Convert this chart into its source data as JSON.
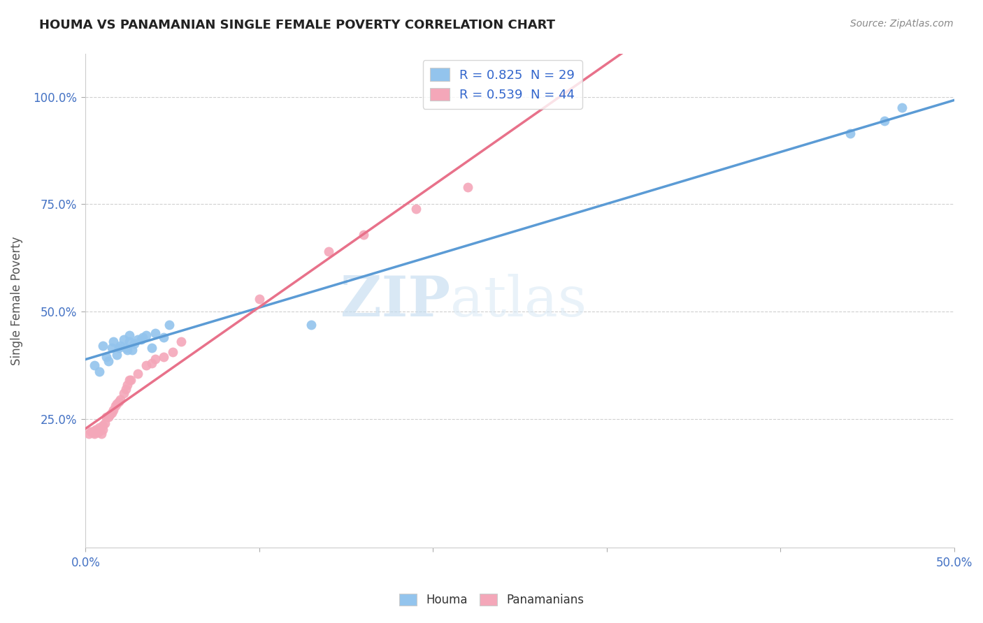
{
  "title": "HOUMA VS PANAMANIAN SINGLE FEMALE POVERTY CORRELATION CHART",
  "source": "Source: ZipAtlas.com",
  "ylabel": "Single Female Poverty",
  "xlim": [
    0.0,
    0.5
  ],
  "ylim": [
    -0.05,
    1.1
  ],
  "xtick_labels": [
    "0.0%",
    "",
    "",
    "",
    "",
    "50.0%"
  ],
  "xtick_vals": [
    0.0,
    0.1,
    0.2,
    0.3,
    0.4,
    0.5
  ],
  "ytick_labels": [
    "25.0%",
    "50.0%",
    "75.0%",
    "100.0%"
  ],
  "ytick_vals": [
    0.25,
    0.5,
    0.75,
    1.0
  ],
  "houma_R": 0.825,
  "houma_N": 29,
  "panamanian_R": 0.539,
  "panamanian_N": 44,
  "houma_color": "#93c4ed",
  "panamanian_color": "#f4a7b9",
  "houma_line_color": "#5b9bd5",
  "panamanian_line_color": "#e8718a",
  "legend_text_color": "#3366cc",
  "watermark_zip": "ZIP",
  "watermark_atlas": "atlas",
  "background_color": "#ffffff",
  "grid_color": "#d0d0d0",
  "houma_x": [
    0.005,
    0.008,
    0.01,
    0.012,
    0.013,
    0.015,
    0.016,
    0.018,
    0.019,
    0.02,
    0.022,
    0.023,
    0.024,
    0.025,
    0.025,
    0.027,
    0.028,
    0.03,
    0.032,
    0.033,
    0.035,
    0.038,
    0.04,
    0.045,
    0.048,
    0.13,
    0.44,
    0.46,
    0.47
  ],
  "houma_y": [
    0.375,
    0.36,
    0.42,
    0.395,
    0.385,
    0.415,
    0.43,
    0.4,
    0.415,
    0.42,
    0.435,
    0.415,
    0.41,
    0.43,
    0.445,
    0.41,
    0.425,
    0.435,
    0.435,
    0.44,
    0.445,
    0.415,
    0.45,
    0.44,
    0.47,
    0.47,
    0.915,
    0.945,
    0.975
  ],
  "panamanian_x": [
    0.002,
    0.003,
    0.004,
    0.005,
    0.005,
    0.005,
    0.006,
    0.006,
    0.007,
    0.007,
    0.007,
    0.008,
    0.008,
    0.008,
    0.009,
    0.01,
    0.01,
    0.011,
    0.012,
    0.013,
    0.014,
    0.015,
    0.016,
    0.017,
    0.018,
    0.019,
    0.02,
    0.022,
    0.023,
    0.024,
    0.025,
    0.026,
    0.03,
    0.035,
    0.038,
    0.04,
    0.045,
    0.05,
    0.055,
    0.1,
    0.14,
    0.16,
    0.19,
    0.22
  ],
  "panamanian_y": [
    0.215,
    0.22,
    0.22,
    0.215,
    0.218,
    0.222,
    0.22,
    0.225,
    0.22,
    0.222,
    0.218,
    0.225,
    0.23,
    0.225,
    0.215,
    0.235,
    0.225,
    0.24,
    0.255,
    0.255,
    0.26,
    0.265,
    0.27,
    0.28,
    0.285,
    0.29,
    0.295,
    0.31,
    0.32,
    0.33,
    0.34,
    0.34,
    0.355,
    0.375,
    0.38,
    0.39,
    0.395,
    0.405,
    0.43,
    0.53,
    0.64,
    0.68,
    0.74,
    0.79
  ]
}
